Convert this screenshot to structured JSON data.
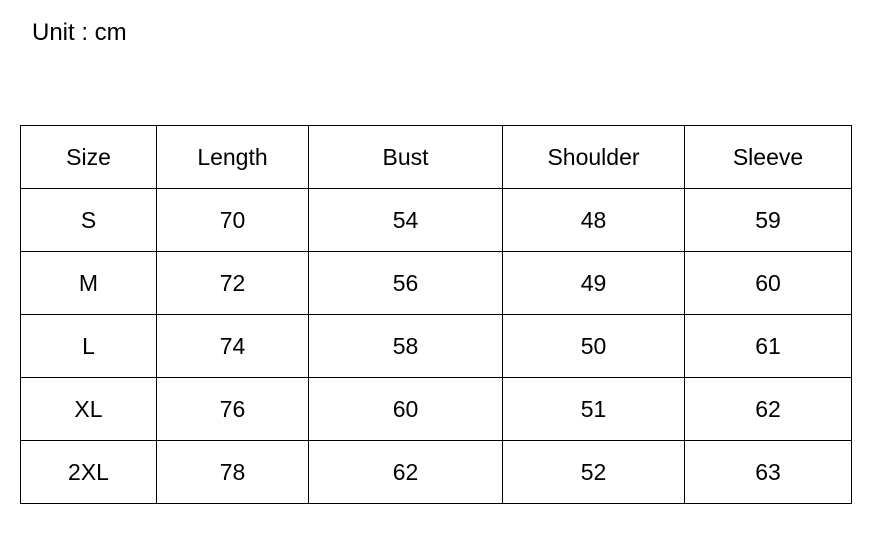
{
  "unit_label": "Unit : cm",
  "table": {
    "headers": [
      "Size",
      "Length",
      "Bust",
      "Shoulder",
      "Sleeve"
    ],
    "rows": [
      [
        "S",
        "70",
        "54",
        "48",
        "59"
      ],
      [
        "M",
        "72",
        "56",
        "49",
        "60"
      ],
      [
        "L",
        "74",
        "58",
        "50",
        "61"
      ],
      [
        "XL",
        "76",
        "60",
        "51",
        "62"
      ],
      [
        "2XL",
        "78",
        "62",
        "52",
        "63"
      ]
    ]
  }
}
